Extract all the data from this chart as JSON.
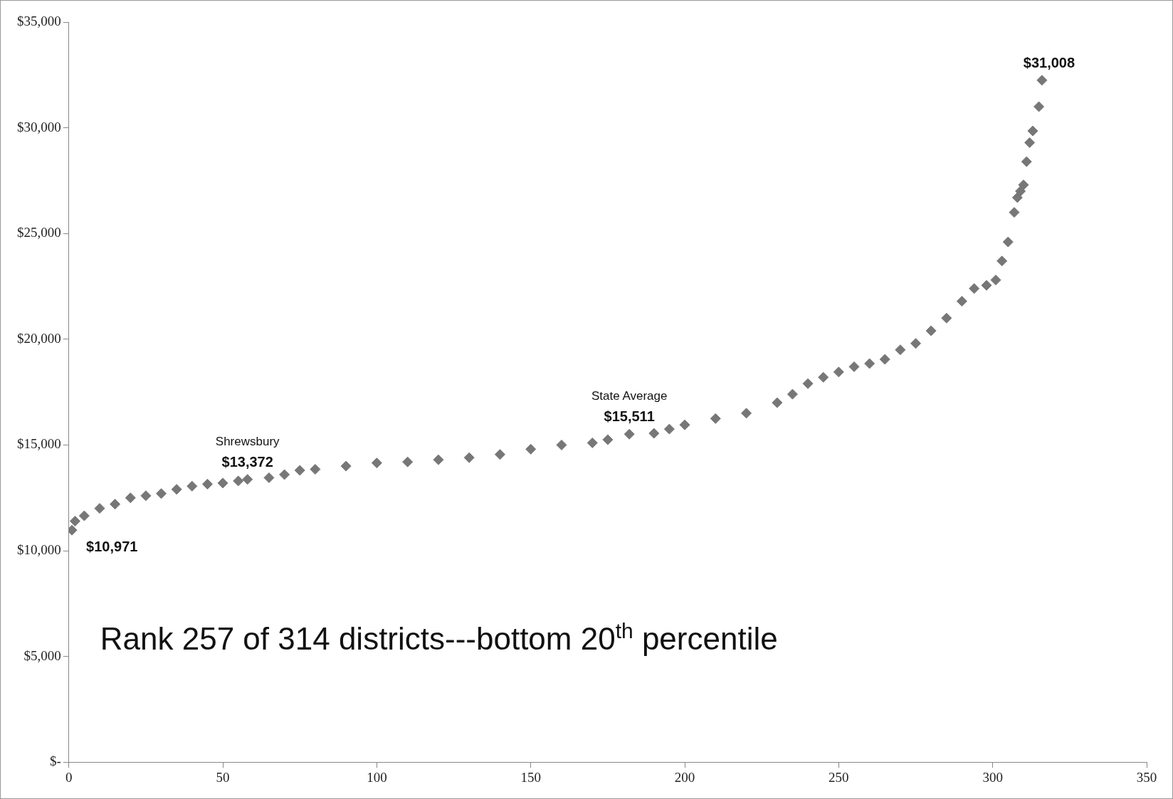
{
  "chart_data": {
    "type": "scatter",
    "marker": "diamond",
    "grid": false,
    "legend": false,
    "x": [
      1,
      2,
      5,
      10,
      15,
      20,
      25,
      30,
      35,
      40,
      45,
      50,
      55,
      58,
      65,
      70,
      75,
      80,
      90,
      100,
      110,
      120,
      130,
      140,
      150,
      160,
      170,
      175,
      182,
      190,
      195,
      200,
      210,
      220,
      230,
      235,
      240,
      245,
      250,
      255,
      260,
      265,
      270,
      275,
      280,
      285,
      290,
      294,
      298,
      301,
      303,
      305,
      307,
      308,
      309,
      310,
      311,
      312,
      313,
      315,
      316
    ],
    "series": [
      {
        "color": "#777777",
        "values": [
          10971,
          11400,
          11650,
          12000,
          12200,
          12500,
          12600,
          12700,
          12900,
          13050,
          13150,
          13200,
          13300,
          13372,
          13450,
          13600,
          13800,
          13850,
          14000,
          14150,
          14200,
          14300,
          14400,
          14550,
          14800,
          15000,
          15100,
          15250,
          15511,
          15550,
          15750,
          15950,
          16250,
          16500,
          17000,
          17400,
          17900,
          18200,
          18450,
          18700,
          18850,
          19050,
          19500,
          19800,
          20400,
          21000,
          21800,
          22400,
          22550,
          22800,
          23700,
          24600,
          26000,
          26700,
          27000,
          27300,
          28400,
          29300,
          29850,
          31000,
          32250
        ]
      }
    ],
    "xlim": [
      0,
      350
    ],
    "xticks": [
      0,
      50,
      100,
      150,
      200,
      250,
      300,
      350
    ],
    "ylim": [
      0,
      35000
    ],
    "yticks": [
      {
        "value": 0,
        "label": "$-"
      },
      {
        "value": 5000,
        "label": "$5,000"
      },
      {
        "value": 10000,
        "label": "$10,000"
      },
      {
        "value": 15000,
        "label": "$15,000"
      },
      {
        "value": 20000,
        "label": "$20,000"
      },
      {
        "value": 25000,
        "label": "$25,000"
      },
      {
        "value": 30000,
        "label": "$30,000"
      },
      {
        "value": 35000,
        "label": "$35,000"
      }
    ],
    "annotations": [
      {
        "text": "$10,971",
        "x": 1,
        "y": 10971
      },
      {
        "text": "Shrewsbury\n$13,372",
        "x": 58,
        "y": 13372
      },
      {
        "text": "State Average\n$15,511",
        "x": 182,
        "y": 15511
      },
      {
        "text": "$31,008",
        "x": 316,
        "y": 32250
      },
      "Rank 257 of 314 districts---bottom 20$^{th}$ percentile"
    ]
  }
}
